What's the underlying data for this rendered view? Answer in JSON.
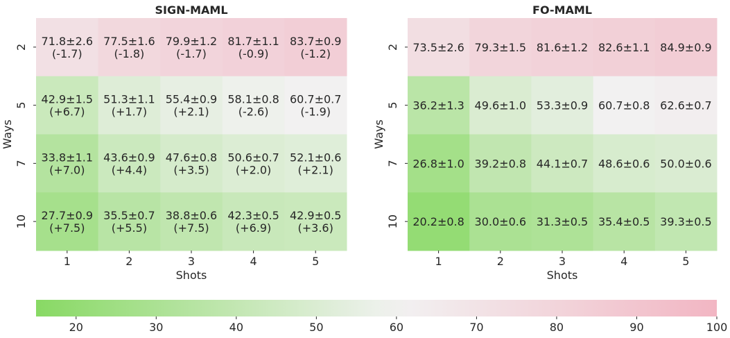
{
  "chart_data": [
    {
      "type": "heatmap",
      "title": "SIGN-MAML",
      "xlabel": "Shots",
      "ylabel": "Ways",
      "x": [
        "1",
        "2",
        "3",
        "4",
        "5"
      ],
      "y": [
        "2",
        "5",
        "7",
        "10"
      ],
      "values": [
        [
          71.8,
          77.5,
          79.9,
          81.7,
          83.7
        ],
        [
          42.9,
          51.3,
          55.4,
          58.1,
          60.7
        ],
        [
          33.8,
          43.6,
          47.6,
          50.6,
          52.1
        ],
        [
          27.7,
          35.5,
          38.8,
          42.3,
          42.9
        ]
      ],
      "cell_labels": [
        [
          "71.8±2.6",
          "77.5±1.6",
          "79.9±1.2",
          "81.7±1.1",
          "83.7±0.9"
        ],
        [
          "42.9±1.5",
          "51.3±1.1",
          "55.4±0.9",
          "58.1±0.8",
          "60.7±0.7"
        ],
        [
          "33.8±1.1",
          "43.6±0.9",
          "47.6±0.8",
          "50.6±0.7",
          "52.1±0.6"
        ],
        [
          "27.7±0.9",
          "35.5±0.7",
          "38.8±0.6",
          "42.3±0.5",
          "42.9±0.5"
        ]
      ],
      "cell_deltas": [
        [
          "(-1.7)",
          "(-1.8)",
          "(-1.7)",
          "(-0.9)",
          "(-1.2)"
        ],
        [
          "(+6.7)",
          "(+1.7)",
          "(+2.1)",
          "(-2.6)",
          "(-1.9)"
        ],
        [
          "(+7.0)",
          "(+4.4)",
          "(+3.5)",
          "(+2.0)",
          "(+2.1)"
        ],
        [
          "(+7.5)",
          "(+5.5)",
          "(+7.5)",
          "(+6.9)",
          "(+3.6)"
        ]
      ]
    },
    {
      "type": "heatmap",
      "title": "FO-MAML",
      "xlabel": "Shots",
      "ylabel": "Ways",
      "x": [
        "1",
        "2",
        "3",
        "4",
        "5"
      ],
      "y": [
        "2",
        "5",
        "7",
        "10"
      ],
      "values": [
        [
          73.5,
          79.3,
          81.6,
          82.6,
          84.9
        ],
        [
          36.2,
          49.6,
          53.3,
          60.7,
          62.6
        ],
        [
          26.8,
          39.2,
          44.1,
          48.6,
          50.0
        ],
        [
          20.2,
          30.0,
          31.3,
          35.4,
          39.3
        ]
      ],
      "cell_labels": [
        [
          "73.5±2.6",
          "79.3±1.5",
          "81.6±1.2",
          "82.6±1.1",
          "84.9±0.9"
        ],
        [
          "36.2±1.3",
          "49.6±1.0",
          "53.3±0.9",
          "60.7±0.8",
          "62.6±0.7"
        ],
        [
          "26.8±1.0",
          "39.2±0.8",
          "44.1±0.7",
          "48.6±0.6",
          "50.0±0.6"
        ],
        [
          "20.2±0.8",
          "30.0±0.6",
          "31.3±0.5",
          "35.4±0.5",
          "39.3±0.5"
        ]
      ]
    }
  ],
  "colorbar": {
    "range": [
      15,
      100
    ],
    "ticks": [
      20,
      30,
      40,
      50,
      60,
      70,
      80,
      90,
      100
    ],
    "color_low": "#88d964",
    "color_mid": "#f2f2f2",
    "color_high": "#f2b6c3",
    "mid_value": 60
  }
}
